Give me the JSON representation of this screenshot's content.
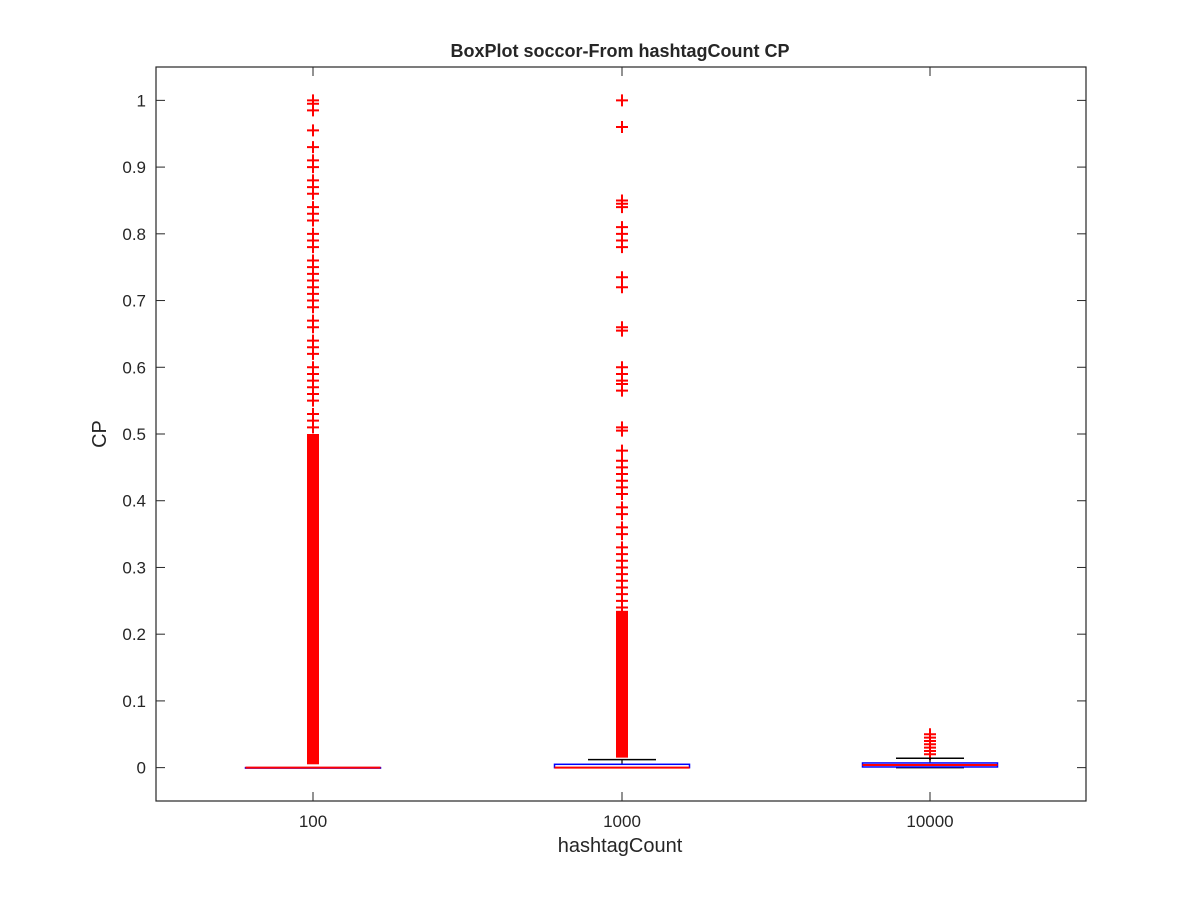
{
  "chart_data": {
    "type": "box",
    "title": "BoxPlot soccor-From hashtagCount CP",
    "xlabel": "hashtagCount",
    "ylabel": "CP",
    "categories": [
      "100",
      "1000",
      "10000"
    ],
    "ylim": [
      -0.05,
      1.05
    ],
    "yticks": [
      0,
      0.1,
      0.2,
      0.3,
      0.4,
      0.5,
      0.6,
      0.7,
      0.8,
      0.9,
      1
    ],
    "ytick_labels": [
      "0",
      "0.1",
      "0.2",
      "0.3",
      "0.4",
      "0.5",
      "0.6",
      "0.7",
      "0.8",
      "0.9",
      "1"
    ],
    "grid": false,
    "colors": {
      "box": "#0000ff",
      "median": "#ff0000",
      "whisker": "#000000",
      "outlier": "#ff0000",
      "axis": "#262626"
    },
    "boxes": [
      {
        "category": "100",
        "q1": 0,
        "median": 0,
        "q3": 0,
        "whisker_low": 0,
        "whisker_high": 0,
        "outlier_dense_range": [
          0.005,
          0.5
        ],
        "outliers": [
          0.51,
          0.52,
          0.53,
          0.55,
          0.56,
          0.57,
          0.58,
          0.59,
          0.6,
          0.62,
          0.63,
          0.64,
          0.66,
          0.67,
          0.69,
          0.7,
          0.71,
          0.72,
          0.73,
          0.74,
          0.75,
          0.76,
          0.78,
          0.79,
          0.8,
          0.82,
          0.83,
          0.84,
          0.86,
          0.87,
          0.88,
          0.9,
          0.91,
          0.93,
          0.955,
          0.985,
          0.995,
          1.0
        ]
      },
      {
        "category": "1000",
        "q1": 0,
        "median": 0,
        "q3": 0.005,
        "whisker_low": 0,
        "whisker_high": 0.012,
        "outlier_dense_range": [
          0.015,
          0.235
        ],
        "outliers": [
          0.24,
          0.25,
          0.26,
          0.27,
          0.28,
          0.29,
          0.3,
          0.31,
          0.32,
          0.33,
          0.35,
          0.36,
          0.38,
          0.39,
          0.41,
          0.42,
          0.43,
          0.44,
          0.45,
          0.46,
          0.475,
          0.505,
          0.51,
          0.565,
          0.575,
          0.58,
          0.59,
          0.6,
          0.655,
          0.66,
          0.72,
          0.735,
          0.78,
          0.79,
          0.8,
          0.81,
          0.84,
          0.845,
          0.85,
          0.96,
          1.0
        ]
      },
      {
        "category": "10000",
        "q1": 0.001,
        "median": 0.004,
        "q3": 0.007,
        "whisker_low": 0,
        "whisker_high": 0.014,
        "outlier_dense_range": [],
        "outliers": [
          0.02,
          0.025,
          0.03,
          0.035,
          0.04,
          0.045,
          0.05
        ]
      }
    ]
  }
}
